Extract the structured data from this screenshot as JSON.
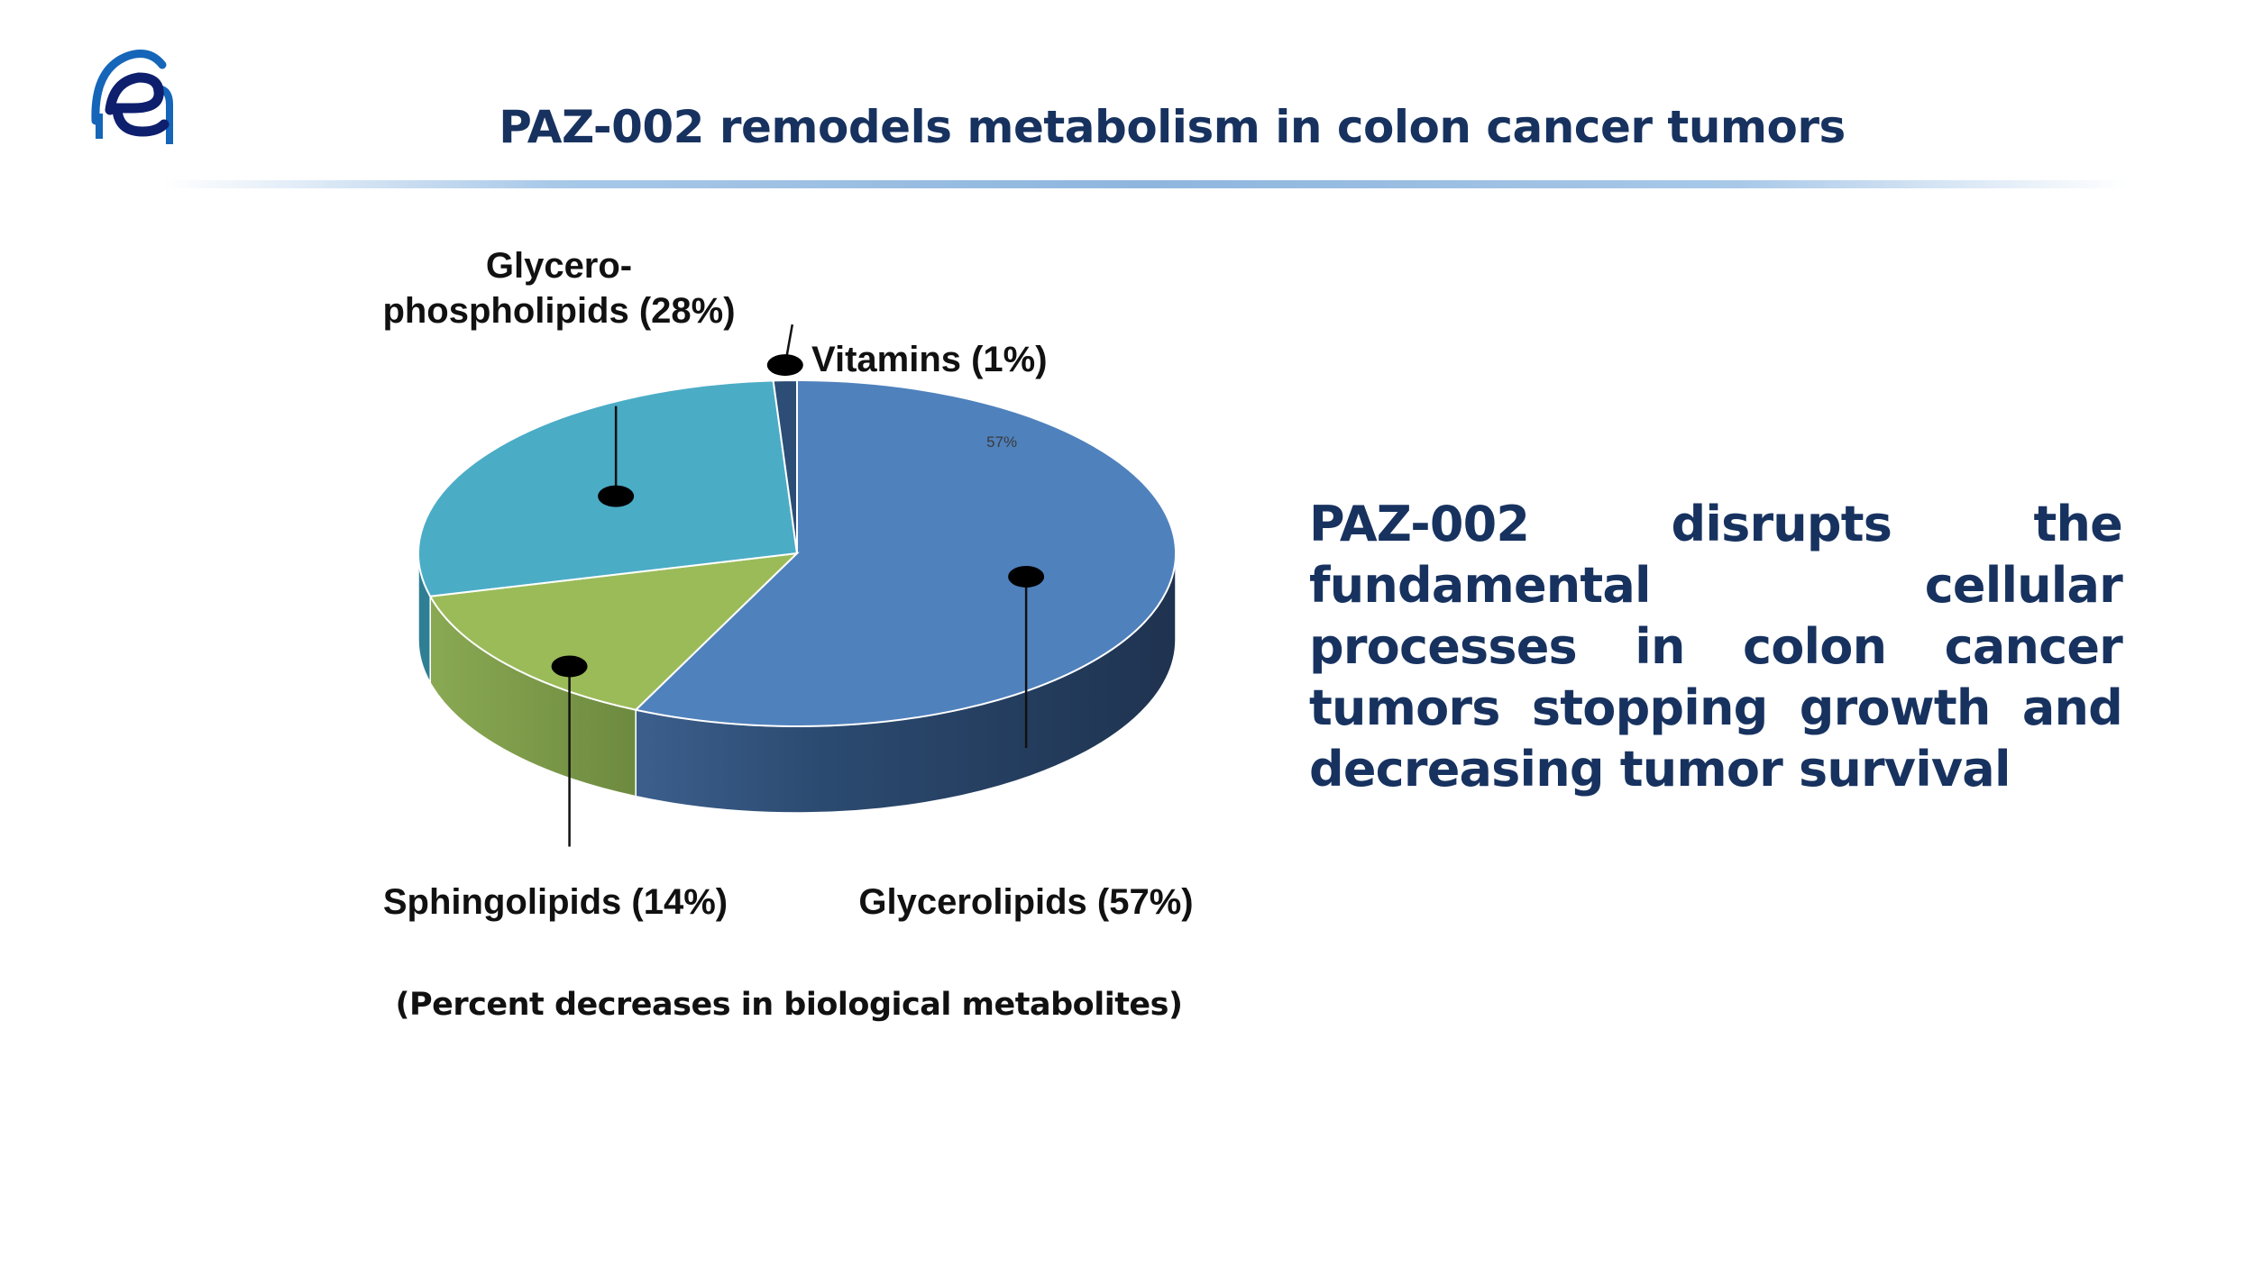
{
  "slide": {
    "title": "PAZ-002 remodels metabolism in colon cancer tumors",
    "statement": "PAZ-002 disrupts the fundamental cellular processes in colon cancer tumors stopping growth and decreasing tumor survival",
    "caption": "(Percent decreases in biological metabolites)",
    "logo_icon": "company-logo-icon"
  },
  "chart_data": {
    "type": "pie",
    "style": "3d",
    "categories": [
      "Glycerolipids",
      "Sphingolipids",
      "Glycerophospholipids",
      "Vitamins"
    ],
    "values": [
      57,
      14,
      28,
      1
    ],
    "slice_labels": [
      "Glycerolipids (57%)",
      "Sphingolipids (14%)",
      "Glycero-\nphospholipids (28%)",
      "Vitamins (1%)"
    ],
    "inner_labels": [
      "57%",
      "",
      "",
      ""
    ],
    "colors": [
      "#4f81bd",
      "#9bbb59",
      "#4bacc6",
      "#2c4d75"
    ],
    "side_colors": [
      "#27405f",
      "#6f8c3e",
      "#2f7f94",
      "#1f3550"
    ],
    "legend": "none"
  }
}
